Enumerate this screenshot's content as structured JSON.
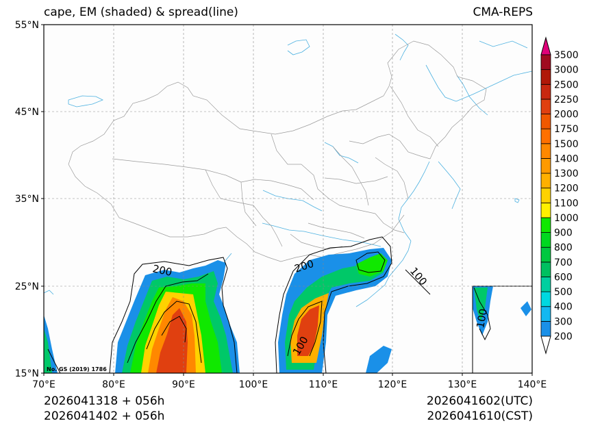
{
  "title_left": "cape, EM (shaded) & spread(line)",
  "title_right": "CMA-REPS",
  "footer": {
    "init_utc": "2026041318  +  056h",
    "init_cst": "2026041402  +  056h",
    "valid_utc": "2026041602(UTC)",
    "valid_cst": "2026041610(CST)"
  },
  "lat_labels": [
    "55°N",
    "45°N",
    "35°N",
    "25°N",
    "15°N"
  ],
  "lon_labels": [
    "70°E",
    "80°E",
    "90°E",
    "100°E",
    "110°E",
    "120°E",
    "130°E",
    "140°E"
  ],
  "map_note": "No. GS (2019) 1786",
  "contour_labels": [
    "200",
    "200",
    "100",
    "100",
    "100"
  ],
  "colorbar": {
    "levels": [
      "200",
      "300",
      "400",
      "500",
      "600",
      "700",
      "800",
      "900",
      "1000",
      "1100",
      "1200",
      "1300",
      "1400",
      "1500",
      "1750",
      "2000",
      "2250",
      "2500",
      "3000",
      "3500"
    ],
    "colors": [
      "#1a90e8",
      "#12b8f0",
      "#00d8e0",
      "#00cfa0",
      "#00c060",
      "#00c840",
      "#00d820",
      "#10e800",
      "#fff000",
      "#ffd200",
      "#ffb000",
      "#ff9a00",
      "#ff8800",
      "#ff7000",
      "#f05800",
      "#e04010",
      "#c82810",
      "#b01808",
      "#a00a20",
      "#c8006a"
    ],
    "under_color": "#ffffff",
    "over_color": "#e0007a"
  }
}
